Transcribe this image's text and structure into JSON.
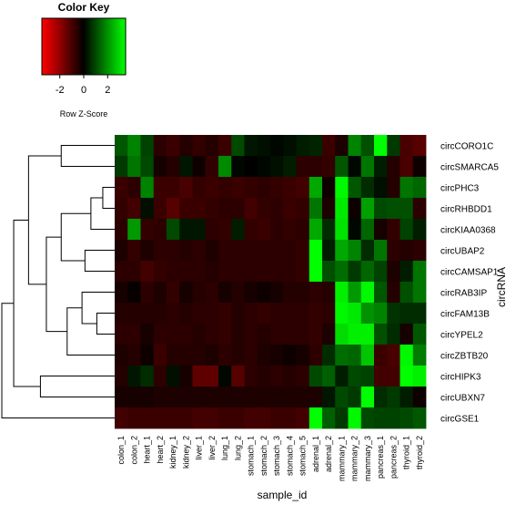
{
  "chart_data": {
    "type": "heatmap",
    "color_key": {
      "title": "Color Key",
      "label": "Row Z-Score",
      "ticks": [
        "-2",
        "0",
        "2"
      ],
      "range": [
        -3.5,
        3.5
      ],
      "colors": {
        "low": "#ff0000",
        "mid": "#000000",
        "high": "#00ff00"
      }
    },
    "xlabel": "sample_id",
    "ylabel": "circRNA",
    "columns": [
      "colon_1",
      "colon_2",
      "heart_1",
      "heart_2",
      "kidney_1",
      "kidney_2",
      "liver_1",
      "liver_2",
      "lung_1",
      "lung_2",
      "stomach_1",
      "stomach_2",
      "stomach_3",
      "stomach_4",
      "stomach_5",
      "adrenal_1",
      "adrenal_2",
      "mammary_1",
      "mammary_2",
      "mammary_3",
      "pancreas_1",
      "pancreas_2",
      "thyroid_1",
      "thyroid_2"
    ],
    "rows": [
      "circCORO1C",
      "circSMARCA5",
      "circPHC3",
      "circRHBDD1",
      "circKIAA0368",
      "circUBAP2",
      "circCAMSAP1",
      "circRAB3IP",
      "circFAM13B",
      "circYPEL2",
      "circZBTB20",
      "circHIPK3",
      "circUBXN7",
      "circGSE1"
    ],
    "values": [
      [
        1.2,
        1.8,
        0.9,
        -0.6,
        -0.8,
        -0.5,
        -0.7,
        -0.5,
        -0.8,
        1.0,
        0.3,
        0.2,
        0.1,
        0.2,
        0.4,
        0.5,
        -0.8,
        -0.4,
        1.8,
        1.1,
        3.5,
        0.8,
        -1.0,
        -1.2
      ],
      [
        0.8,
        1.6,
        1.0,
        -0.3,
        -0.5,
        0.3,
        -0.2,
        -0.7,
        1.9,
        0.1,
        0.0,
        0.1,
        0.2,
        0.4,
        -0.6,
        -0.6,
        -0.7,
        1.2,
        0.1,
        1.6,
        0.4,
        -0.5,
        -1.0,
        -0.2
      ],
      [
        -0.8,
        -0.6,
        1.8,
        -0.8,
        -0.8,
        -1.0,
        -0.7,
        -0.8,
        -0.7,
        -0.8,
        -0.7,
        -0.6,
        -0.7,
        -0.8,
        -0.9,
        2.3,
        -0.2,
        3.4,
        1.2,
        0.6,
        0.2,
        -0.5,
        1.6,
        1.4
      ],
      [
        -0.7,
        -0.9,
        0.2,
        -0.8,
        -1.2,
        -0.8,
        -0.8,
        -0.7,
        -0.6,
        -0.6,
        -0.9,
        -0.7,
        -0.6,
        -0.8,
        -0.7,
        1.6,
        -0.4,
        3.2,
        -0.2,
        2.2,
        1.0,
        1.1,
        1.1,
        -0.6
      ],
      [
        -0.6,
        2.1,
        -0.7,
        -0.6,
        1.0,
        0.3,
        0.3,
        -0.6,
        -0.7,
        0.4,
        -0.7,
        -0.8,
        -0.6,
        -0.7,
        -0.6,
        2.3,
        0.6,
        3.1,
        0.1,
        1.4,
        -0.3,
        -0.7,
        0.9,
        0.4
      ],
      [
        -0.4,
        -0.7,
        -0.4,
        -0.6,
        -0.6,
        -0.5,
        -0.6,
        -0.4,
        -0.6,
        -0.6,
        -0.6,
        -0.6,
        -0.6,
        -0.6,
        -0.7,
        3.5,
        0.4,
        2.3,
        1.8,
        0.6,
        1.6,
        -0.6,
        -0.5,
        -0.6
      ],
      [
        -0.6,
        -0.6,
        -0.9,
        -0.7,
        -0.6,
        -0.6,
        -0.6,
        -0.5,
        -0.6,
        -0.6,
        -0.6,
        -0.6,
        -0.6,
        -0.6,
        -0.7,
        3.5,
        1.1,
        1.5,
        0.8,
        1.4,
        0.9,
        -0.4,
        0.4,
        1.6
      ],
      [
        -0.3,
        -0.1,
        -0.6,
        -0.4,
        -0.7,
        -0.3,
        -0.5,
        -0.6,
        -0.3,
        -0.5,
        -0.3,
        -0.2,
        -0.3,
        -0.5,
        -0.5,
        -0.6,
        -0.5,
        3.3,
        2.1,
        3.4,
        1.2,
        -0.5,
        1.1,
        1.6
      ],
      [
        -0.5,
        -0.5,
        -0.5,
        -0.5,
        -0.6,
        -0.5,
        -0.6,
        -0.6,
        -0.7,
        -0.5,
        -0.6,
        -0.7,
        -0.6,
        -0.6,
        -0.6,
        -0.7,
        -0.6,
        3.4,
        3.2,
        2.0,
        1.8,
        0.7,
        0.6,
        0.6
      ],
      [
        -0.6,
        -0.6,
        -0.3,
        -0.6,
        -0.6,
        -0.6,
        -0.5,
        -0.6,
        -0.7,
        -0.5,
        -0.6,
        -0.5,
        -0.6,
        -0.6,
        -0.6,
        -0.7,
        -0.4,
        3.0,
        3.3,
        3.3,
        1.1,
        0.6,
        -0.3,
        1.2
      ],
      [
        -0.4,
        -0.5,
        -0.2,
        -0.8,
        -0.5,
        -0.5,
        -0.5,
        -0.4,
        -0.6,
        -0.5,
        -0.6,
        -0.4,
        -0.3,
        -0.2,
        -0.3,
        -0.6,
        0.6,
        1.5,
        1.4,
        2.7,
        -0.8,
        -1.0,
        3.4,
        1.7
      ],
      [
        -0.5,
        0.3,
        0.6,
        -0.6,
        0.2,
        -0.3,
        -1.3,
        -1.3,
        0.1,
        -1.2,
        -0.6,
        -0.5,
        -0.6,
        -0.5,
        -0.6,
        1.0,
        1.3,
        0.4,
        1.0,
        0.9,
        -0.9,
        -0.9,
        3.5,
        3.3
      ],
      [
        -0.3,
        -0.3,
        -0.3,
        -0.4,
        -0.4,
        -0.4,
        -0.4,
        -0.4,
        -0.4,
        -0.4,
        -0.4,
        -0.4,
        -0.4,
        -0.4,
        -0.4,
        -0.4,
        0.3,
        1.0,
        0.8,
        3.5,
        0.6,
        0.8,
        0.4,
        -0.2
      ],
      [
        -0.9,
        -0.8,
        -0.8,
        -0.8,
        -0.8,
        -0.8,
        -0.9,
        -0.9,
        -0.8,
        -0.8,
        -0.9,
        -0.9,
        -0.8,
        -0.8,
        -0.9,
        3.5,
        1.3,
        0.8,
        3.4,
        1.0,
        0.9,
        0.9,
        1.0,
        1.2
      ]
    ],
    "dendrogram": [
      {
        "left": "circCORO1C",
        "right": "circSMARCA5",
        "height": 0.9,
        "id": "n1"
      },
      {
        "left": "circPHC3",
        "right": "circRHBDD1",
        "height": 0.2,
        "id": "n2"
      },
      {
        "left": "n2",
        "right": "circKIAA0368",
        "height": 0.4,
        "id": "n3"
      },
      {
        "left": "circUBAP2",
        "right": "circCAMSAP1",
        "height": 0.5,
        "id": "n4"
      },
      {
        "left": "n3",
        "right": "n4",
        "height": 0.9,
        "id": "n5"
      },
      {
        "left": "circFAM13B",
        "right": "circYPEL2",
        "height": 0.3,
        "id": "n6"
      },
      {
        "left": "circRAB3IP",
        "right": "n6",
        "height": 0.55,
        "id": "n7"
      },
      {
        "left": "n7",
        "right": "circZBTB20",
        "height": 0.8,
        "id": "n8"
      },
      {
        "left": "n5",
        "right": "n8",
        "height": 1.15,
        "id": "n9"
      },
      {
        "left": "n1",
        "right": "n9",
        "height": 1.45,
        "id": "n10"
      },
      {
        "left": "circHIPK3",
        "right": "circUBXN7",
        "height": 1.25,
        "id": "n11"
      },
      {
        "left": "n10",
        "right": "n11",
        "height": 1.7,
        "id": "n12"
      },
      {
        "left": "n12",
        "right": "circGSE1",
        "height": 1.9,
        "id": "n13"
      }
    ]
  }
}
